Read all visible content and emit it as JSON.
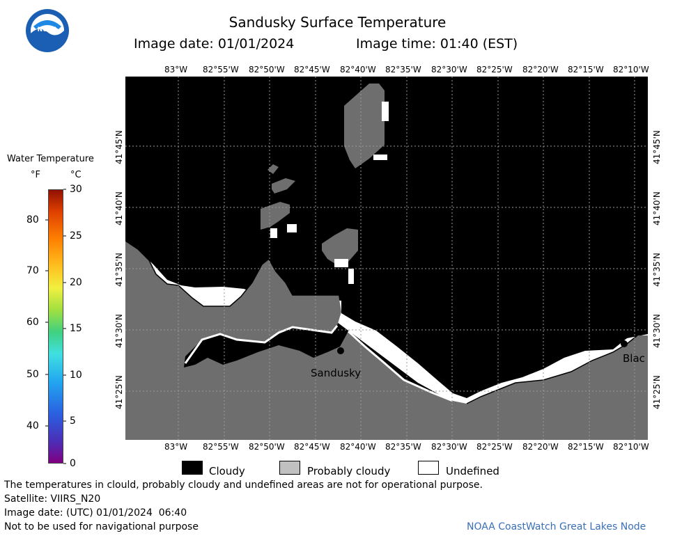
{
  "header": {
    "title": "Sandusky Surface Temperature",
    "image_date": "Image date: 01/01/2024",
    "image_time": "Image time: 01:40 (EST)"
  },
  "logo": {
    "text": "NOAA"
  },
  "map": {
    "lon_labels": [
      "83°W",
      "82°55'W",
      "82°50'W",
      "82°45'W",
      "82°40'W",
      "82°35'W",
      "82°30'W",
      "82°25'W",
      "82°20'W",
      "82°15'W",
      "82°10'W"
    ],
    "lat_labels": [
      "41°45'N",
      "41°40'N",
      "41°35'N",
      "41°30'N",
      "41°25'N"
    ],
    "places": [
      {
        "name": "Sandusky"
      },
      {
        "name": "Blac"
      }
    ]
  },
  "colorbar": {
    "title": "Water Temperature",
    "unit_f": "°F",
    "unit_c": "°C",
    "f_ticks": [
      "80",
      "70",
      "60",
      "50",
      "40"
    ],
    "c_ticks": [
      "30",
      "25",
      "20",
      "15",
      "10",
      "5",
      "0"
    ]
  },
  "legend": {
    "items": [
      {
        "label": "Cloudy",
        "color": "#000000"
      },
      {
        "label": "Probably cloudy",
        "color": "#c0c0c0"
      },
      {
        "label": "Undefined",
        "color": "#ffffff"
      }
    ]
  },
  "footer": {
    "note": "The temperatures in clould, probably cloudy and undefined areas are not for operational purpose.",
    "satellite": "Satellite: VIIRS_N20",
    "utc_date": "Image date: (UTC) 01/01/2024  06:40",
    "nav": "Not to be used for navigational purpose",
    "credit": "NOAA CoastWatch Great Lakes Node"
  },
  "colors": {
    "cloud": "#000000",
    "land": "#6e6e6e",
    "undefined": "#ffffff",
    "credit": "#3a6fb8"
  }
}
